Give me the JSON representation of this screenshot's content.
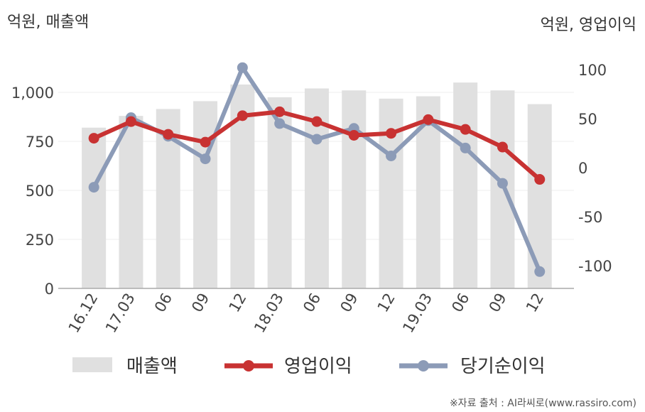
{
  "chart_data": {
    "type": "bar",
    "left_unit_label": "억원, 매출액",
    "right_unit_label": "억원, 영업이익",
    "categories": [
      "16.12",
      "17.03",
      "06",
      "09",
      "12",
      "18.03",
      "06",
      "09",
      "12",
      "19.03",
      "06",
      "09",
      "12"
    ],
    "left_axis": {
      "min": 0,
      "max": 1125,
      "ticks": [
        "0",
        "250",
        "500",
        "750",
        "1,000"
      ],
      "tick_values": [
        0,
        250,
        500,
        750,
        1000
      ]
    },
    "right_axis": {
      "min": -123,
      "max": 102,
      "ticks": [
        "-100",
        "-50",
        "0",
        "50",
        "100"
      ],
      "tick_values": [
        -100,
        -50,
        0,
        50,
        100
      ]
    },
    "series": [
      {
        "name": "매출액",
        "type": "bar",
        "axis": "left",
        "color": "#e0e0e0",
        "values": [
          820,
          880,
          915,
          955,
          1040,
          975,
          1020,
          1010,
          968,
          980,
          1050,
          1010,
          940
        ]
      },
      {
        "name": "영업이익",
        "type": "line",
        "axis": "right",
        "color": "#c83232",
        "values": [
          30,
          47,
          34,
          26,
          53,
          57,
          47,
          33,
          35,
          49,
          39,
          21,
          -12
        ]
      },
      {
        "name": "당기순이익",
        "type": "line",
        "axis": "right",
        "color": "#8c9bb7",
        "values": [
          -20,
          51,
          32,
          9,
          102,
          45,
          29,
          40,
          12,
          48,
          20,
          -16,
          -106
        ]
      }
    ],
    "legend_position": "bottom",
    "grid": true
  },
  "source": "※자료 출처 : AI라씨로(www.rassiro.com)"
}
